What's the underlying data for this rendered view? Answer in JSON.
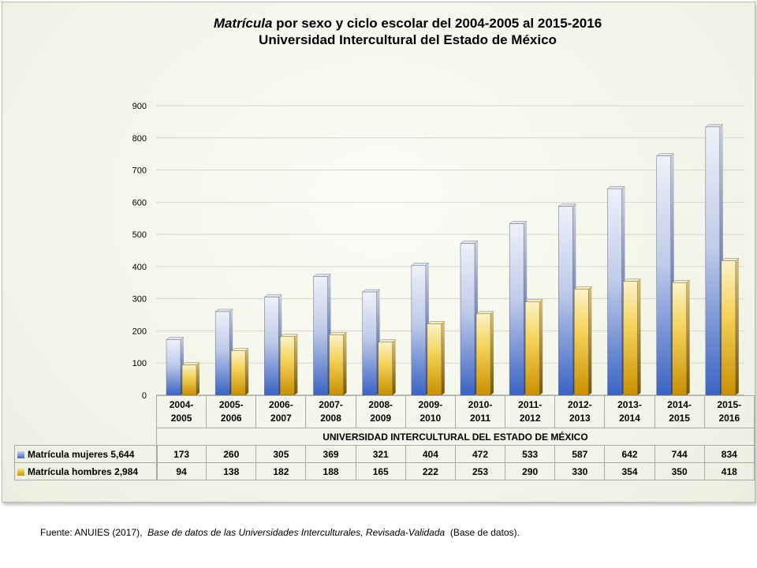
{
  "title": {
    "italic_part": "Matrícula",
    "line1_rest": " por sexo y ciclo escolar del 2004-2005 al 2015-2016",
    "line2": "Universidad Intercultural del Estado de México"
  },
  "chart_data": {
    "type": "bar",
    "categories": [
      "2004-2005",
      "2005-2006",
      "2006-2007",
      "2007-2008",
      "2008-2009",
      "2009-2010",
      "2010-2011",
      "2011-2012",
      "2012-2013",
      "2013-2014",
      "2014-2015",
      "2015-2016"
    ],
    "category_lines": [
      [
        "2004-",
        "2005"
      ],
      [
        "2005-",
        "2006"
      ],
      [
        "2006-",
        "2007"
      ],
      [
        "2007-",
        "2008"
      ],
      [
        "2008-",
        "2009"
      ],
      [
        "2009-",
        "2010"
      ],
      [
        "2010-",
        "2011"
      ],
      [
        "2011-",
        "2012"
      ],
      [
        "2012-",
        "2013"
      ],
      [
        "2013-",
        "2014"
      ],
      [
        "2014-",
        "2015"
      ],
      [
        "2015-",
        "2016"
      ]
    ],
    "series": [
      {
        "name": "Matrícula mujeres  5,644",
        "color": "#4a72c8",
        "values": [
          173,
          260,
          305,
          369,
          321,
          404,
          472,
          533,
          587,
          642,
          744,
          834
        ]
      },
      {
        "name": "Matrícula hombres  2,984",
        "color": "#e0ad00",
        "values": [
          94,
          138,
          182,
          188,
          165,
          222,
          253,
          290,
          330,
          354,
          350,
          418
        ]
      }
    ],
    "xlabel": "UNIVERSIDAD INTERCULTURAL DEL ESTADO DE MÉXICO",
    "ylabel": "",
    "ylim": [
      0,
      900
    ],
    "yticks": [
      0,
      100,
      200,
      300,
      400,
      500,
      600,
      700,
      800,
      900
    ],
    "grid": true,
    "legend": "table-left"
  },
  "source": {
    "prefix": "Fuente: ANUIES (2017),",
    "italic": "Base de datos de las Universidades  Interculturales, Revisada-Validada",
    "suffix": "(Base de datos)."
  }
}
